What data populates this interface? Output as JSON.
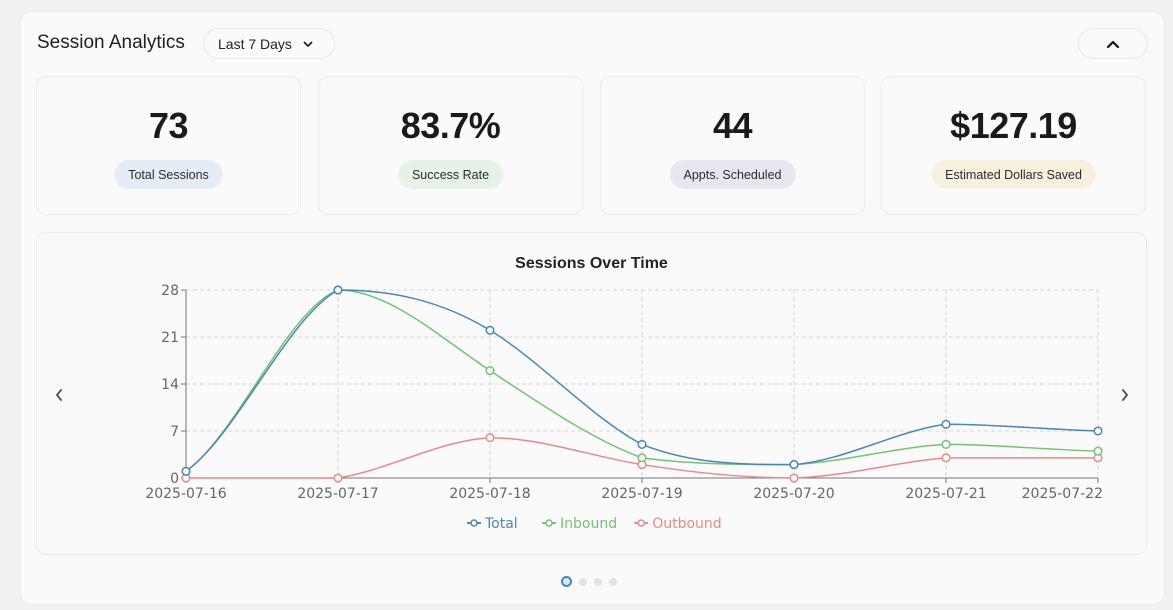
{
  "header": {
    "title": "Session Analytics",
    "range_select": {
      "value": "Last 7 Days"
    },
    "collapse_icon": "chevron-up-icon"
  },
  "stats": [
    {
      "value": "73",
      "label": "Total Sessions",
      "badge_color": "#e4ecf7"
    },
    {
      "value": "83.7%",
      "label": "Success Rate",
      "badge_color": "#e6f2e6"
    },
    {
      "value": "44",
      "label": "Appts. Scheduled",
      "badge_color": "#e8e6f0"
    },
    {
      "value": "$127.19",
      "label": "Estimated Dollars Saved",
      "badge_color": "#f8f0de"
    }
  ],
  "carousel": {
    "prev_icon": "chevron-left-icon",
    "next_icon": "chevron-right-icon",
    "page_count": 4,
    "active_page": 1
  },
  "chart_data": {
    "type": "line",
    "title": "Sessions Over Time",
    "xlabel": "",
    "ylabel": "",
    "x": [
      "2025-07-16",
      "2025-07-17",
      "2025-07-18",
      "2025-07-19",
      "2025-07-20",
      "2025-07-21",
      "2025-07-22"
    ],
    "ylim": [
      0,
      28
    ],
    "yticks": [
      0,
      7,
      14,
      21,
      28
    ],
    "grid": true,
    "legend": "bottom-center",
    "series": [
      {
        "name": "Total",
        "color": "#4a86b8",
        "values": [
          1,
          28,
          22,
          5,
          2,
          8,
          7
        ]
      },
      {
        "name": "Inbound",
        "color": "#74c274",
        "values": [
          1,
          28,
          16,
          3,
          2,
          5,
          4
        ]
      },
      {
        "name": "Outbound",
        "color": "#e88a8a",
        "values": [
          0,
          0,
          6,
          2,
          0,
          3,
          3
        ]
      }
    ]
  }
}
